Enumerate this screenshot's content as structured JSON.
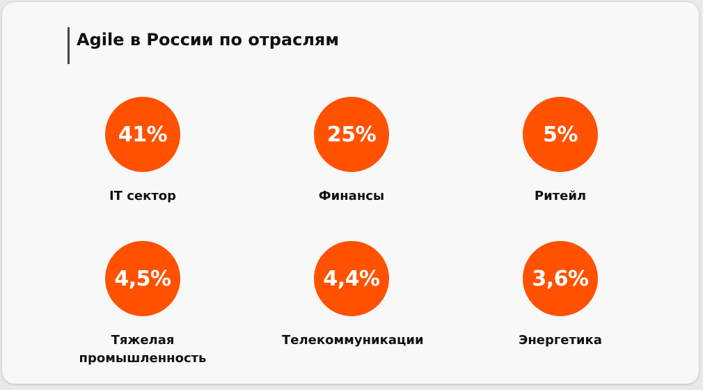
{
  "header": {
    "title": "Agile в России по отраслям"
  },
  "items": [
    {
      "value": "41%",
      "label": "IT сектор"
    },
    {
      "value": "25%",
      "label": "Финансы"
    },
    {
      "value": "5%",
      "label": "Ритейл"
    },
    {
      "value": "4,5%",
      "label": "Тяжелая промышленность"
    },
    {
      "value": "4,4%",
      "label": "Телекоммуникации"
    },
    {
      "value": "3,6%",
      "label": "Энергетика"
    }
  ]
}
